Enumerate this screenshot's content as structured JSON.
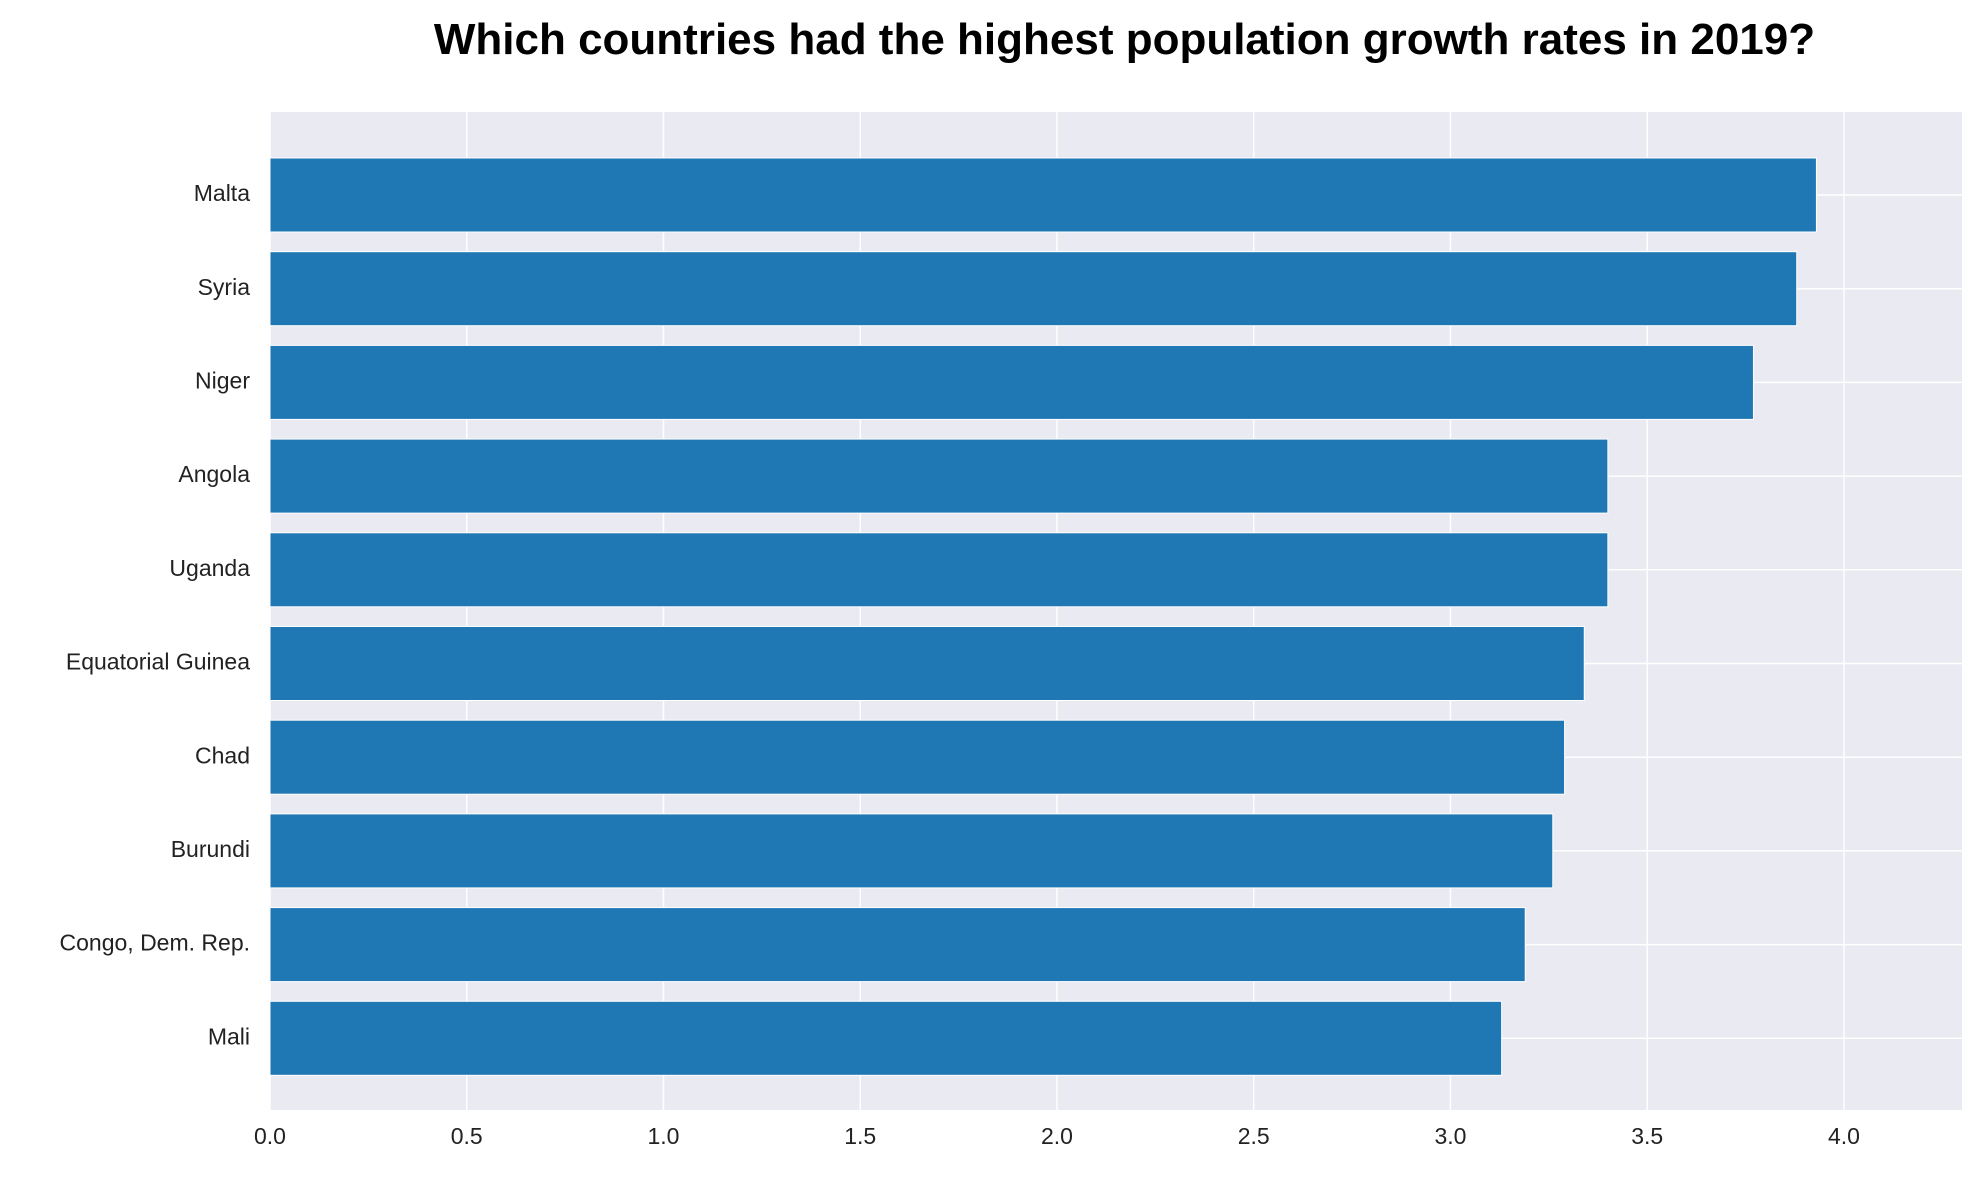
{
  "chart_data": {
    "type": "bar",
    "orientation": "horizontal",
    "title": "Which countries had the highest population growth rates in 2019?",
    "xlabel": "",
    "ylabel": "",
    "categories": [
      "Malta",
      "Syria",
      "Niger",
      "Angola",
      "Uganda",
      "Equatorial Guinea",
      "Chad",
      "Burundi",
      "Congo, Dem. Rep.",
      "Mali"
    ],
    "values": [
      3.93,
      3.88,
      3.77,
      3.4,
      3.4,
      3.34,
      3.29,
      3.26,
      3.19,
      3.13
    ],
    "xlim": [
      0,
      4.3
    ],
    "xticks": [
      "0.0",
      "0.5",
      "1.0",
      "1.5",
      "2.0",
      "2.5",
      "3.0",
      "3.5",
      "4.0"
    ],
    "grid": true,
    "colors": {
      "bar": "#1f77b4",
      "plot_background": "#eaeaf2",
      "grid": "#ffffff"
    }
  }
}
